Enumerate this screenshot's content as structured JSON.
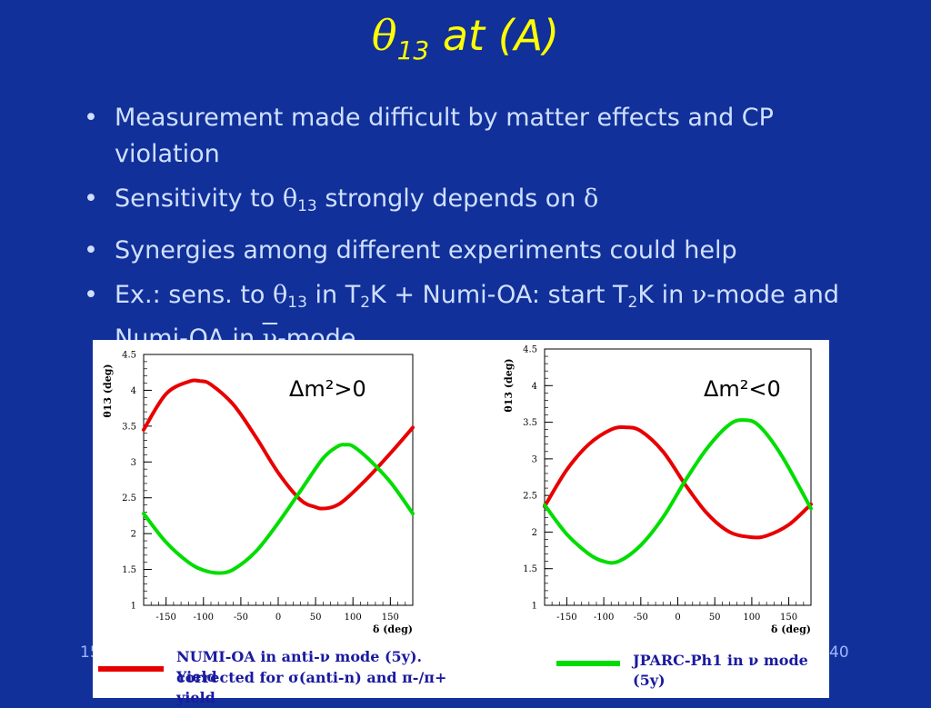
{
  "slide": {
    "title_symbol": "θ",
    "title_sub": "13",
    "title_rest": " at (A)",
    "bullets": [
      {
        "parts": [
          "Measurement made difficult by matter effects and CP violation"
        ]
      },
      {
        "text_a": "Sensitivity to ",
        "sym": "θ",
        "sub": "13",
        "text_b": " strongly depends on ",
        "sym2": "δ"
      },
      {
        "text": "Synergies among different experiments could help"
      },
      {
        "a": "Ex.: sens. to ",
        "sym": "θ",
        "sub": "13",
        "b": " in T",
        "sub2": "2",
        "c": "K + Numi-OA: start T",
        "sub3": "2",
        "d": "K in ",
        "nu": "ν",
        "e": "-mode and Numi-OA in ",
        "nubar": "ν",
        "f": "-mode"
      }
    ],
    "footer_date": "15",
    "footer_page": "40",
    "colors": {
      "background": "#123099",
      "title": "#ffff00",
      "text": "#cfe0ff",
      "red": "#e80000",
      "green": "#00dd00"
    }
  },
  "legend": {
    "left": "NUMI-OA in anti-ν mode (5y). Yield corrected for σ(anti-n) and π-/π+ yield",
    "left_line1": "NUMI-OA in anti-ν mode (5y). Yield",
    "left_line2": "corrected for σ(anti-n) and π-/π+ yield",
    "right": "JPARC-Ph1 in ν mode (5y)"
  },
  "chart_data": [
    {
      "type": "line",
      "annotation": "Δm²>0",
      "xlabel": "δ (deg)",
      "ylabel": "θ13 (deg)",
      "xlim": [
        -180,
        180
      ],
      "ylim": [
        1,
        4.5
      ],
      "xticks": [
        -150,
        -100,
        -50,
        0,
        50,
        100,
        150
      ],
      "yticks": [
        1,
        1.5,
        2,
        2.5,
        3,
        3.5,
        4,
        4.5
      ],
      "grid": false,
      "series": [
        {
          "color": "#e80000",
          "x": [
            -180,
            -150,
            -120,
            -105,
            -90,
            -60,
            -30,
            0,
            30,
            50,
            60,
            75,
            90,
            120,
            150,
            180
          ],
          "y": [
            3.45,
            3.95,
            4.12,
            4.13,
            4.08,
            3.8,
            3.35,
            2.85,
            2.47,
            2.37,
            2.35,
            2.38,
            2.48,
            2.78,
            3.12,
            3.48
          ]
        },
        {
          "color": "#00dd00",
          "x": [
            -180,
            -150,
            -120,
            -100,
            -80,
            -60,
            -30,
            0,
            30,
            60,
            80,
            90,
            100,
            120,
            150,
            180
          ],
          "y": [
            2.28,
            1.88,
            1.6,
            1.49,
            1.45,
            1.5,
            1.75,
            2.15,
            2.6,
            3.05,
            3.22,
            3.24,
            3.22,
            3.05,
            2.72,
            2.28
          ]
        }
      ]
    },
    {
      "type": "line",
      "annotation": "Δm²<0",
      "xlabel": "δ (deg)",
      "ylabel": "θ13 (deg)",
      "xlim": [
        -180,
        180
      ],
      "ylim": [
        1,
        4.5
      ],
      "xticks": [
        -150,
        -100,
        -50,
        0,
        50,
        100,
        150
      ],
      "yticks": [
        1,
        1.5,
        2,
        2.5,
        3,
        3.5,
        4,
        4.5
      ],
      "grid": false,
      "series": [
        {
          "color": "#e80000",
          "x": [
            -180,
            -150,
            -120,
            -90,
            -70,
            -50,
            -20,
            10,
            40,
            70,
            100,
            120,
            150,
            180
          ],
          "y": [
            2.35,
            2.85,
            3.2,
            3.4,
            3.43,
            3.38,
            3.1,
            2.65,
            2.25,
            2.0,
            1.93,
            1.95,
            2.1,
            2.38
          ]
        },
        {
          "color": "#00dd00",
          "x": [
            -180,
            -150,
            -120,
            -100,
            -80,
            -50,
            -20,
            10,
            40,
            70,
            90,
            110,
            140,
            180
          ],
          "y": [
            2.37,
            1.97,
            1.7,
            1.6,
            1.6,
            1.82,
            2.2,
            2.7,
            3.15,
            3.47,
            3.53,
            3.45,
            3.05,
            2.32
          ]
        }
      ]
    }
  ]
}
